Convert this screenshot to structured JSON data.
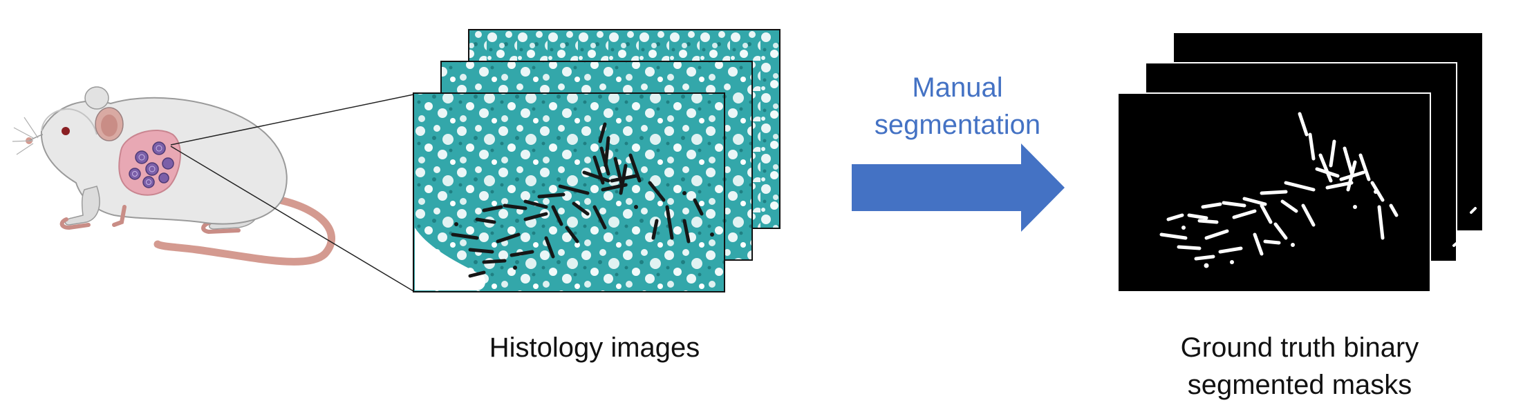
{
  "diagram": {
    "arrow_label": [
      "Manual",
      "segmentation"
    ],
    "histology_caption": "Histology images",
    "mask_caption": [
      "Ground truth binary",
      "segmented masks"
    ],
    "colors": {
      "arrow": "#4472c4",
      "arrow_text": "#4472c4",
      "tissue": "#2fa3a6",
      "stain": "#1c1c1c",
      "mask_bg": "#000000",
      "mask_fg": "#ffffff",
      "mouse_body": "#e6e6e6",
      "mouse_tail": "#d49a90",
      "tumor": "#e8a8b4",
      "colony": "#7b5fa8"
    },
    "icons": [
      "mouse-illustration",
      "histology-slide-stack",
      "binary-mask-stack",
      "right-arrow"
    ]
  }
}
